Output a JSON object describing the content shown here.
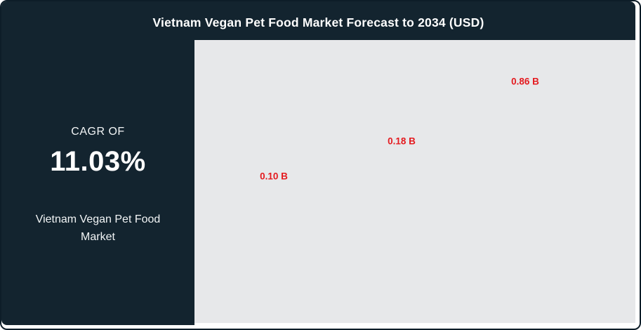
{
  "header": {
    "title": "Vietnam Vegan Pet Food Market Forecast to 2034 (USD)"
  },
  "sidebar": {
    "cagr_label": "CAGR OF",
    "cagr_value": "11.03%",
    "market_name": "Vietnam Vegan Pet Food Market"
  },
  "chart_data": {
    "type": "bar",
    "title": "Vietnam Vegan Pet Food Market Forecast to 2034 (USD)",
    "unit": "USD billions",
    "values": [
      0.1,
      0.18,
      0.86
    ],
    "data_labels": [
      "0.10 B",
      "0.18 B",
      "0.86 B"
    ],
    "categories": [],
    "cagr_percent": 11.03,
    "legend": "none",
    "grid": "off",
    "layout_note": "Only red data labels are rendered inside the light-gray plot panel; bars, axes and tick labels are not visible in the screenshot",
    "label_color": "#e41a1f",
    "plot_background": "#e7e8ea"
  },
  "colors": {
    "panel_dark": "#13242f",
    "border_dark": "#0d1d28",
    "accent_red": "#e41a1f",
    "plot_bg": "#e7e8ea",
    "text_light": "#ffffff"
  }
}
